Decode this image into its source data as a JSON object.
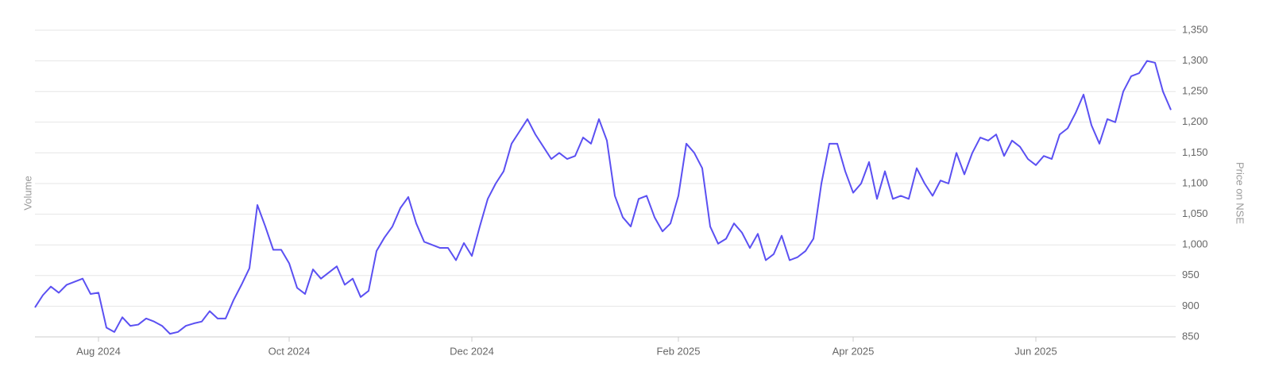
{
  "chart_data": {
    "type": "line",
    "ylabel_left": "Volume",
    "ylabel_right": "Price on NSE",
    "categories": [
      null,
      null,
      null,
      null,
      null,
      null,
      null,
      null,
      "Aug 2024",
      null,
      null,
      null,
      null,
      null,
      null,
      null,
      null,
      null,
      null,
      null,
      null,
      null,
      null,
      null,
      null,
      null,
      null,
      null,
      null,
      null,
      null,
      null,
      "Oct 2024",
      null,
      null,
      null,
      null,
      null,
      null,
      null,
      null,
      null,
      null,
      null,
      null,
      null,
      null,
      null,
      null,
      null,
      null,
      null,
      null,
      null,
      null,
      "Dec 2024",
      null,
      null,
      null,
      null,
      null,
      null,
      null,
      null,
      null,
      null,
      null,
      null,
      null,
      null,
      null,
      null,
      null,
      null,
      null,
      null,
      null,
      null,
      null,
      null,
      null,
      "Feb 2025",
      null,
      null,
      null,
      null,
      null,
      null,
      null,
      null,
      null,
      null,
      null,
      null,
      null,
      null,
      null,
      null,
      null,
      null,
      null,
      null,
      null,
      "Apr 2025",
      null,
      null,
      null,
      null,
      null,
      null,
      null,
      null,
      null,
      null,
      null,
      null,
      null,
      null,
      null,
      null,
      null,
      null,
      null,
      null,
      null,
      null,
      "Jun 2025",
      null,
      null,
      null,
      null,
      null,
      null,
      null,
      null,
      null,
      null,
      null,
      null,
      null,
      null,
      null,
      null,
      null
    ],
    "series": [
      {
        "name": "Price on NSE",
        "color": "#5b50f2",
        "values": [
          898,
          918,
          932,
          922,
          935,
          940,
          945,
          920,
          922,
          865,
          858,
          882,
          868,
          870,
          880,
          875,
          868,
          855,
          858,
          868,
          872,
          875,
          892,
          880,
          880,
          910,
          935,
          962,
          1065,
          1030,
          992,
          992,
          970,
          930,
          920,
          960,
          945,
          955,
          965,
          935,
          945,
          915,
          925,
          990,
          1012,
          1030,
          1060,
          1078,
          1035,
          1005,
          1000,
          995,
          995,
          975,
          1003,
          982,
          1030,
          1075,
          1100,
          1120,
          1165,
          1185,
          1205,
          1180,
          1160,
          1140,
          1150,
          1140,
          1145,
          1175,
          1165,
          1205,
          1170,
          1080,
          1045,
          1030,
          1075,
          1080,
          1045,
          1022,
          1035,
          1080,
          1165,
          1150,
          1125,
          1030,
          1002,
          1010,
          1035,
          1020,
          995,
          1018,
          975,
          985,
          1015,
          975,
          980,
          990,
          1010,
          1100,
          1165,
          1165,
          1120,
          1085,
          1100,
          1135,
          1075,
          1120,
          1075,
          1080,
          1075,
          1125,
          1100,
          1080,
          1105,
          1100,
          1150,
          1115,
          1150,
          1175,
          1170,
          1180,
          1145,
          1170,
          1160,
          1140,
          1130,
          1145,
          1140,
          1180,
          1190,
          1215,
          1245,
          1195,
          1165,
          1205,
          1200,
          1250,
          1275,
          1280,
          1300,
          1297,
          1250,
          1220
        ]
      }
    ],
    "ylim": [
      850,
      1350
    ],
    "yticks": [
      850,
      900,
      950,
      {
        "value": 1000,
        "label": "1,000"
      },
      {
        "value": 1050,
        "label": "1,050"
      },
      {
        "value": 1100,
        "label": "1,100"
      },
      {
        "value": 1150,
        "label": "1,150"
      },
      {
        "value": 1200,
        "label": "1,200"
      },
      {
        "value": 1250,
        "label": "1,250"
      },
      {
        "value": 1300,
        "label": "1,300"
      },
      {
        "value": 1350,
        "label": "1,350"
      }
    ],
    "grid": true
  }
}
